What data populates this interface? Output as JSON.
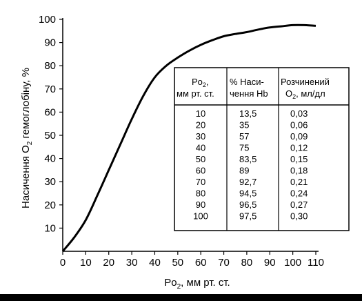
{
  "chart_data": {
    "type": "line",
    "xlabel_main": "Po",
    "xlabel_sub": "2",
    "xlabel_rest": ", мм рт. ст.",
    "ylabel_main": "Насичення O",
    "ylabel_sub": "2",
    "ylabel_rest": " гемоглобіну, %",
    "xlim": [
      0,
      110
    ],
    "ylim": [
      0,
      100
    ],
    "x_ticks": [
      0,
      10,
      20,
      30,
      40,
      50,
      60,
      70,
      80,
      90,
      100,
      110
    ],
    "y_ticks": [
      10,
      20,
      30,
      40,
      50,
      60,
      70,
      80,
      90,
      100
    ],
    "grid": false,
    "series": [
      {
        "x": [
          0,
          5,
          10,
          15,
          20,
          25,
          30,
          35,
          40,
          45,
          50,
          55,
          60,
          65,
          70,
          75,
          80,
          85,
          90,
          95,
          100,
          105,
          110
        ],
        "y": [
          0,
          6,
          13.5,
          24,
          35,
          46,
          57,
          67,
          75,
          80,
          83.5,
          86.5,
          89,
          91,
          92.7,
          93.7,
          94.5,
          95.6,
          96.5,
          97,
          97.5,
          97.5,
          97.2
        ]
      }
    ],
    "table": {
      "headers": [
        {
          "main": "Po",
          "sub": "2",
          "lines": [
            ",",
            "мм рт. ст."
          ]
        },
        {
          "lines": [
            "% Наси-",
            "чення Hb"
          ]
        },
        {
          "main": "Розчинений",
          "lines": [
            "O",
            "2",
            ", мл/дл"
          ]
        }
      ],
      "header_col1_line1": "Po",
      "header_col1_sub": "2",
      "header_col1_comma": ",",
      "header_col1_line2": "мм рт. ст.",
      "header_col2_line1": "% Наси-",
      "header_col2_line2": "чення Hb",
      "header_col3_line1": "Розчинений",
      "header_col3_line2_main": "O",
      "header_col3_line2_sub": "2",
      "header_col3_line2_rest": ", мл/дл",
      "rows": [
        [
          "10",
          "13,5",
          "0,03"
        ],
        [
          "20",
          "35",
          "0,06"
        ],
        [
          "30",
          "57",
          "0,09"
        ],
        [
          "40",
          "75",
          "0,12"
        ],
        [
          "50",
          "83,5",
          "0,15"
        ],
        [
          "60",
          "89",
          "0,18"
        ],
        [
          "70",
          "92,7",
          "0,21"
        ],
        [
          "80",
          "94,5",
          "0,24"
        ],
        [
          "90",
          "96,5",
          "0,27"
        ],
        [
          "100",
          "97,5",
          "0,30"
        ]
      ]
    }
  }
}
